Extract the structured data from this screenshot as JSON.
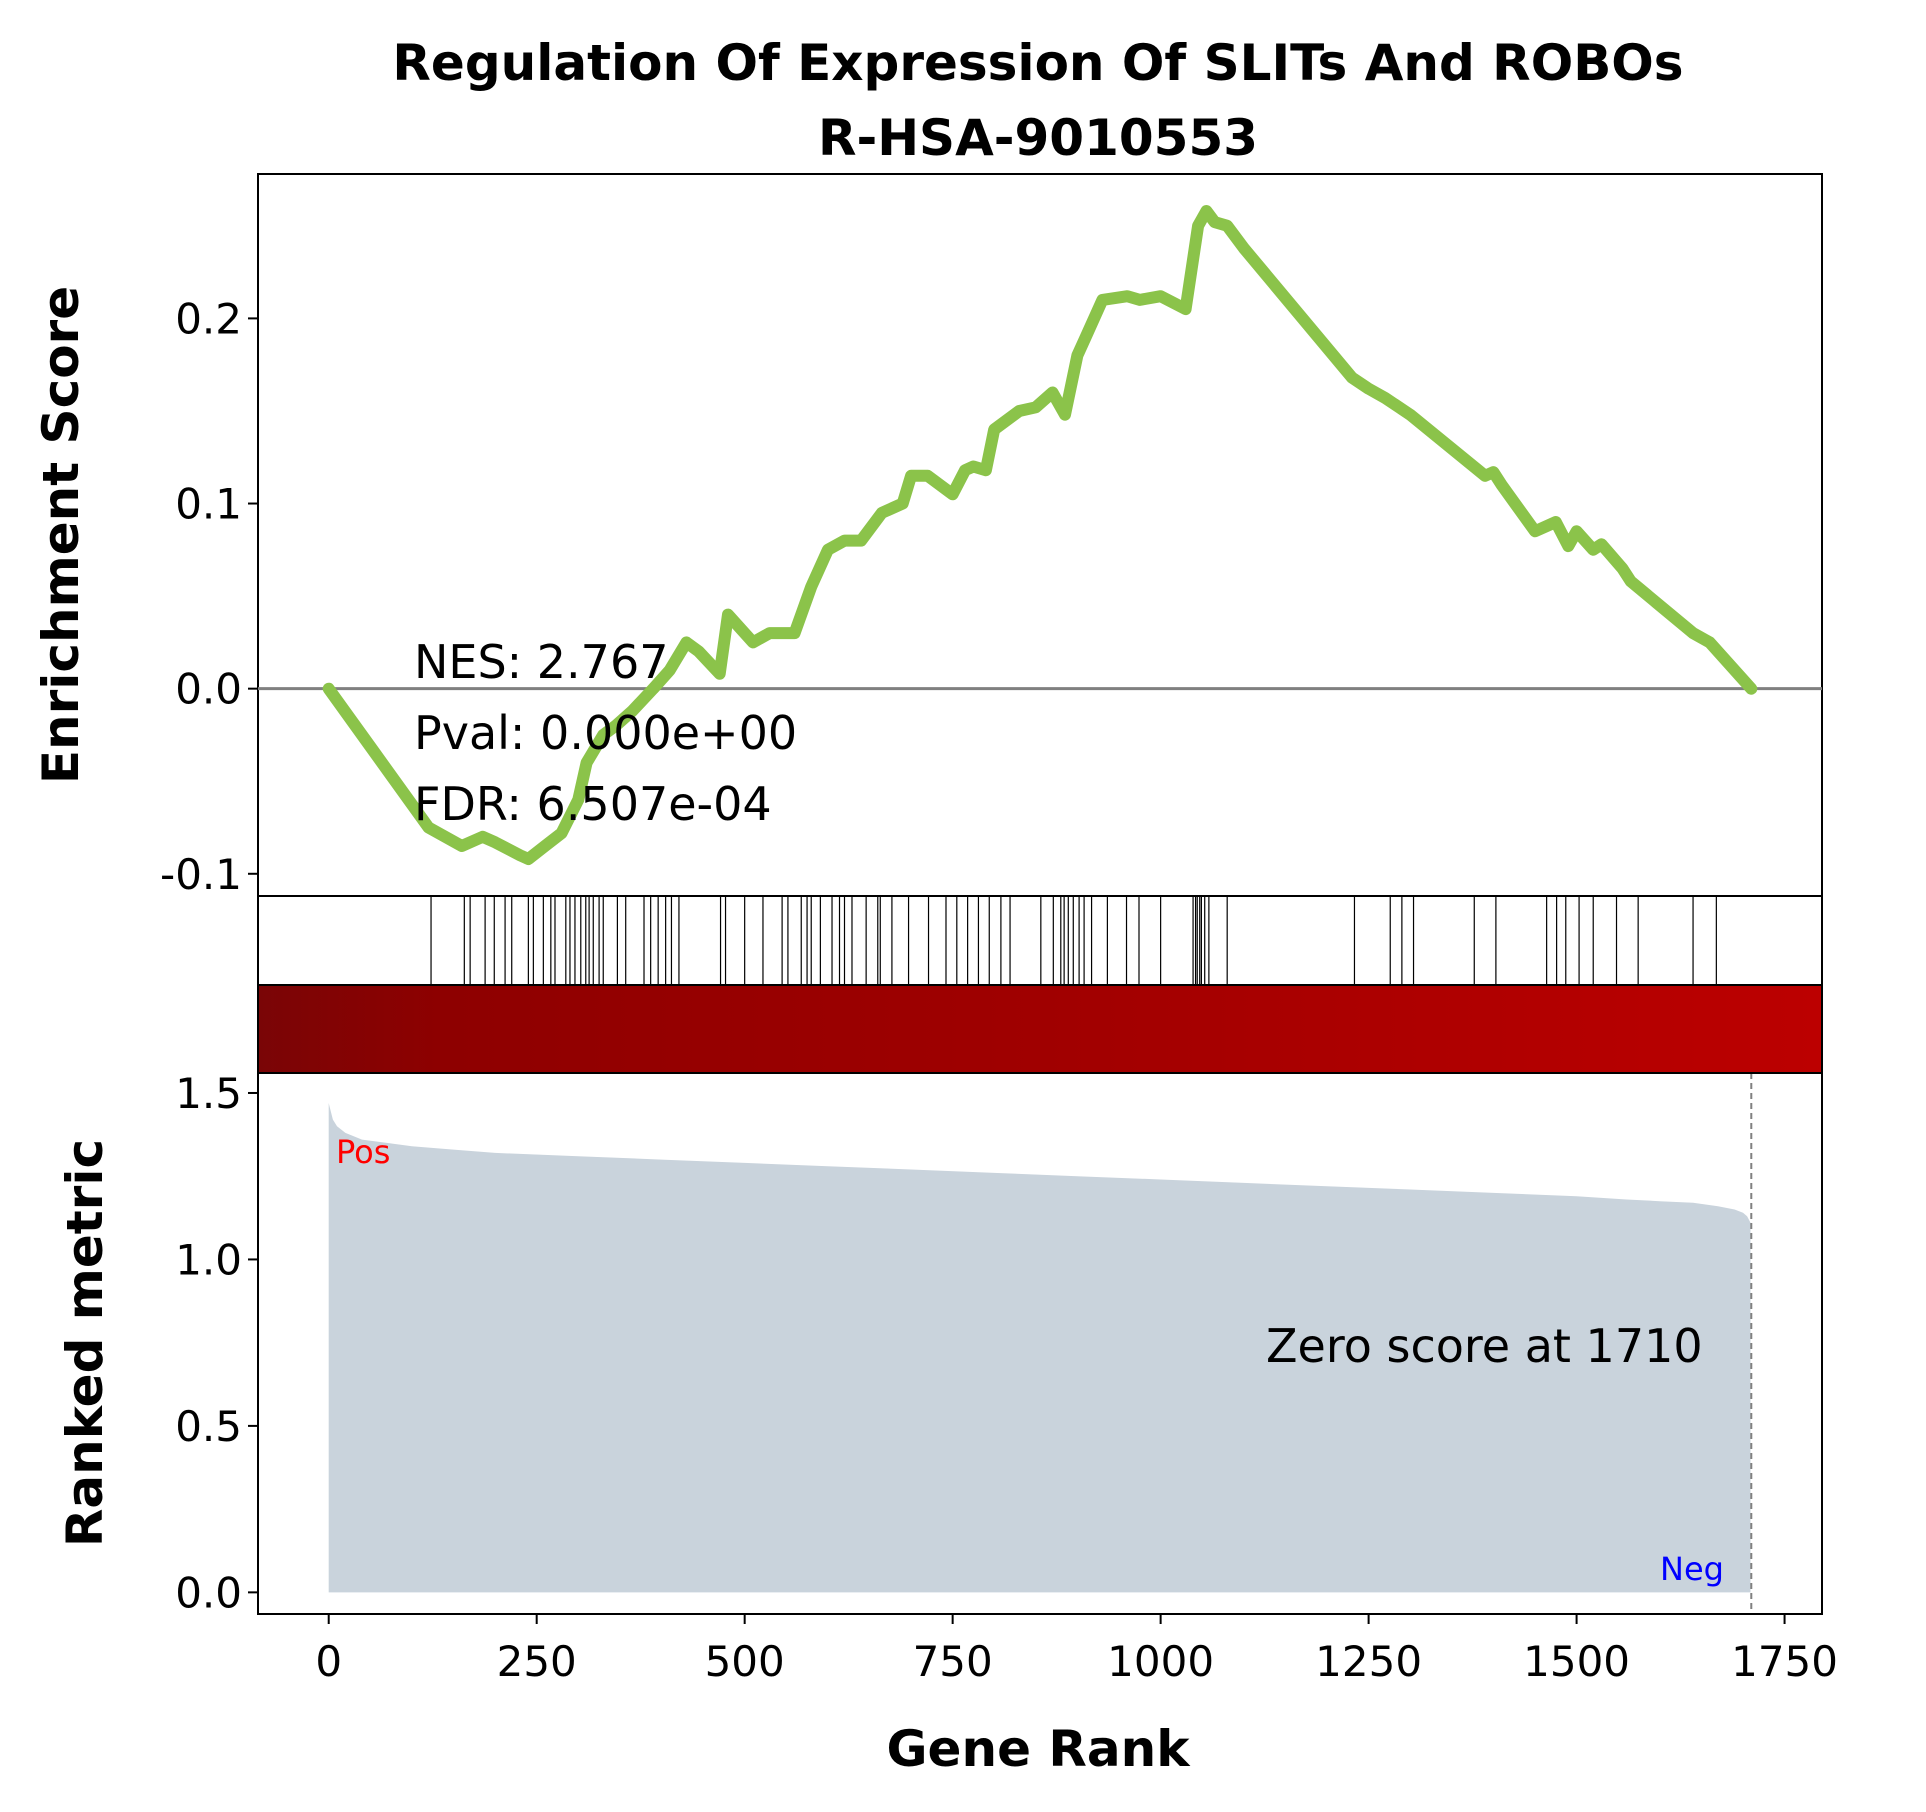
{
  "chart_data": {
    "type": "line",
    "title": "Regulation Of Expression Of SLITs And ROBOs",
    "subtitle": "R-HSA-9010553",
    "xlabel": "Gene Rank",
    "xlim": [
      -85,
      1795
    ],
    "xticks": [
      0,
      250,
      500,
      750,
      1000,
      1250,
      1500,
      1750
    ],
    "enrichment_panel": {
      "ylabel": "Enrichment Score",
      "ylim": [
        -0.112,
        0.278
      ],
      "yticks": [
        {
          "value": 0.2,
          "label": "0.2"
        },
        {
          "value": 0.1,
          "label": "0.1"
        },
        {
          "value": 0.0,
          "label": "0.0"
        },
        {
          "value": -0.1,
          "label": "-0.1"
        }
      ],
      "line_color": "#8bc34a",
      "zero_line_color": "#808080",
      "es_curve": {
        "x": [
          0,
          120,
          160,
          185,
          200,
          230,
          240,
          260,
          280,
          300,
          310,
          330,
          345,
          365,
          390,
          410,
          430,
          445,
          470,
          480,
          510,
          530,
          560,
          580,
          600,
          620,
          640,
          665,
          690,
          700,
          720,
          750,
          765,
          775,
          790,
          800,
          830,
          850,
          870,
          885,
          900,
          910,
          930,
          960,
          975,
          1000,
          1030,
          1045,
          1055,
          1065,
          1080,
          1100,
          1230,
          1250,
          1270,
          1300,
          1390,
          1400,
          1410,
          1450,
          1475,
          1490,
          1500,
          1520,
          1530,
          1555,
          1565,
          1640,
          1660,
          1710
        ],
        "y": [
          0.0,
          -0.075,
          -0.085,
          -0.08,
          -0.083,
          -0.09,
          -0.092,
          -0.085,
          -0.078,
          -0.06,
          -0.04,
          -0.025,
          -0.02,
          -0.012,
          0.0,
          0.01,
          0.025,
          0.02,
          0.008,
          0.04,
          0.025,
          0.03,
          0.03,
          0.055,
          0.075,
          0.08,
          0.08,
          0.095,
          0.1,
          0.115,
          0.115,
          0.105,
          0.118,
          0.12,
          0.118,
          0.14,
          0.15,
          0.152,
          0.16,
          0.148,
          0.18,
          0.19,
          0.21,
          0.212,
          0.21,
          0.212,
          0.205,
          0.25,
          0.258,
          0.252,
          0.25,
          0.238,
          0.168,
          0.162,
          0.157,
          0.148,
          0.115,
          0.117,
          0.11,
          0.085,
          0.09,
          0.077,
          0.085,
          0.075,
          0.078,
          0.065,
          0.058,
          0.03,
          0.025,
          0.0
        ]
      },
      "stats": {
        "nes": "NES: 2.767",
        "pval": "Pval: 0.000e+00",
        "fdr": "FDR: 6.507e-04"
      }
    },
    "hits_panel": {
      "hit_positions": [
        123,
        163,
        170,
        188,
        199,
        212,
        220,
        240,
        246,
        258,
        267,
        272,
        285,
        290,
        296,
        303,
        309,
        313,
        318,
        325,
        330,
        347,
        357,
        379,
        387,
        396,
        405,
        412,
        421,
        471,
        477,
        500,
        522,
        545,
        552,
        568,
        575,
        580,
        591,
        605,
        614,
        620,
        629,
        646,
        660,
        663,
        677,
        697,
        721,
        742,
        755,
        768,
        781,
        794,
        808,
        819,
        856,
        871,
        880,
        884,
        889,
        895,
        902,
        908,
        917,
        936,
        959,
        974,
        1000,
        1039,
        1042,
        1044,
        1047,
        1049,
        1053,
        1058,
        1080,
        1233,
        1276,
        1290,
        1304,
        1377,
        1403,
        1464,
        1476,
        1487,
        1503,
        1520,
        1548,
        1574,
        1640,
        1668
      ]
    },
    "colorbar": {
      "from_color": "#7a0506",
      "to_color": "#bc0000"
    },
    "metric_panel": {
      "ylabel": "Ranked metric",
      "ylim": [
        -0.065,
        1.56
      ],
      "yticks": [
        {
          "value": 1.5,
          "label": "1.5"
        },
        {
          "value": 1.0,
          "label": "1.0"
        },
        {
          "value": 0.5,
          "label": "0.5"
        },
        {
          "value": 0.0,
          "label": "0.0"
        }
      ],
      "fill_color": "#c9d3dc",
      "metric_curve": {
        "x": [
          0,
          1,
          3,
          5,
          10,
          20,
          40,
          70,
          100,
          150,
          200,
          300,
          400,
          500,
          600,
          700,
          800,
          900,
          1000,
          1100,
          1200,
          1300,
          1400,
          1500,
          1560,
          1600,
          1640,
          1670,
          1690,
          1700,
          1705,
          1709
        ],
        "y": [
          1.47,
          1.46,
          1.44,
          1.42,
          1.4,
          1.38,
          1.36,
          1.35,
          1.34,
          1.33,
          1.32,
          1.31,
          1.3,
          1.29,
          1.28,
          1.27,
          1.26,
          1.25,
          1.24,
          1.23,
          1.22,
          1.21,
          1.2,
          1.19,
          1.18,
          1.175,
          1.17,
          1.16,
          1.15,
          1.14,
          1.13,
          1.11
        ]
      },
      "zero_cross": 1710,
      "zero_text": "Zero score at 1710",
      "pos_label": "Pos",
      "pos_color": "#ff0000",
      "neg_label": "Neg",
      "neg_color": "#0000ff"
    }
  }
}
